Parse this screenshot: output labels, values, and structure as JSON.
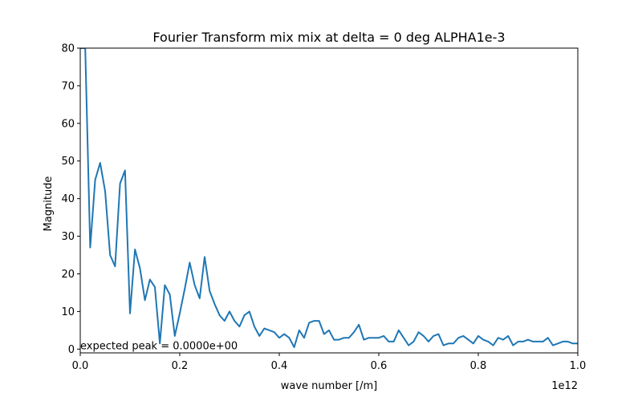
{
  "chart_data": {
    "type": "line",
    "title": "Fourier Transform mix mix at delta = 0 deg ALPHA1e-3",
    "xlabel": "wave number [/m]",
    "ylabel": "Magnitude",
    "x_offset_label": "1e12",
    "xlim": [
      0.0,
      1.0
    ],
    "ylim": [
      -1,
      80
    ],
    "x_ticks": [
      0.0,
      0.2,
      0.4,
      0.6,
      0.8,
      1.0
    ],
    "x_tick_labels": [
      "0.0",
      "0.2",
      "0.4",
      "0.6",
      "0.8",
      "1.0"
    ],
    "y_ticks": [
      0,
      10,
      20,
      30,
      40,
      50,
      60,
      70,
      80
    ],
    "y_tick_labels": [
      "0",
      "10",
      "20",
      "30",
      "40",
      "50",
      "60",
      "70",
      "80"
    ],
    "grid": false,
    "annotation": {
      "text": "expected peak = 0.0000e+00",
      "x": 0.0,
      "y": 0.0,
      "color": "#ff0000"
    },
    "series": [
      {
        "color": "#1f77b4",
        "x": [
          0.0,
          0.01,
          0.02,
          0.03,
          0.04,
          0.05,
          0.06,
          0.07,
          0.08,
          0.09,
          0.1,
          0.11,
          0.12,
          0.13,
          0.14,
          0.15,
          0.16,
          0.17,
          0.18,
          0.19,
          0.2,
          0.21,
          0.22,
          0.23,
          0.24,
          0.25,
          0.26,
          0.27,
          0.28,
          0.29,
          0.3,
          0.31,
          0.32,
          0.33,
          0.34,
          0.35,
          0.36,
          0.37,
          0.38,
          0.39,
          0.4,
          0.41,
          0.42,
          0.43,
          0.44,
          0.45,
          0.46,
          0.47,
          0.48,
          0.49,
          0.5,
          0.51,
          0.52,
          0.53,
          0.54,
          0.55,
          0.56,
          0.57,
          0.58,
          0.59,
          0.6,
          0.61,
          0.62,
          0.63,
          0.64,
          0.65,
          0.66,
          0.67,
          0.68,
          0.69,
          0.7,
          0.71,
          0.72,
          0.73,
          0.74,
          0.75,
          0.76,
          0.77,
          0.78,
          0.79,
          0.8,
          0.81,
          0.82,
          0.83,
          0.84,
          0.85,
          0.86,
          0.87,
          0.88,
          0.89,
          0.9,
          0.91,
          0.92,
          0.93,
          0.94,
          0.95,
          0.96,
          0.97,
          0.98,
          0.99,
          1.0
        ],
        "y": [
          80,
          80,
          27,
          45,
          49.5,
          42,
          25,
          22,
          44,
          47.5,
          9.5,
          26.5,
          21.5,
          13,
          18.5,
          16.5,
          1.5,
          17,
          14.5,
          3.5,
          9.5,
          16,
          23,
          17,
          13.5,
          24.5,
          15.5,
          12,
          9,
          7.5,
          10,
          7.5,
          6,
          9,
          10,
          6,
          3.5,
          5.5,
          5,
          4.5,
          3,
          4,
          3,
          0.5,
          5,
          3,
          7,
          7.5,
          7.5,
          4,
          5,
          2.5,
          2.5,
          3,
          3,
          4.5,
          6.5,
          2.5,
          3,
          3,
          3,
          3.5,
          2,
          2,
          5,
          3,
          1,
          2,
          4.5,
          3.5,
          2,
          3.5,
          4,
          1,
          1.5,
          1.5,
          3,
          3.5,
          2.5,
          1.5,
          3.5,
          2.5,
          2,
          1,
          3,
          2.5,
          3.5,
          1,
          2,
          2,
          2.5,
          2,
          2,
          2,
          3,
          1,
          1.5,
          2,
          2,
          1.5,
          1.5
        ]
      }
    ]
  }
}
